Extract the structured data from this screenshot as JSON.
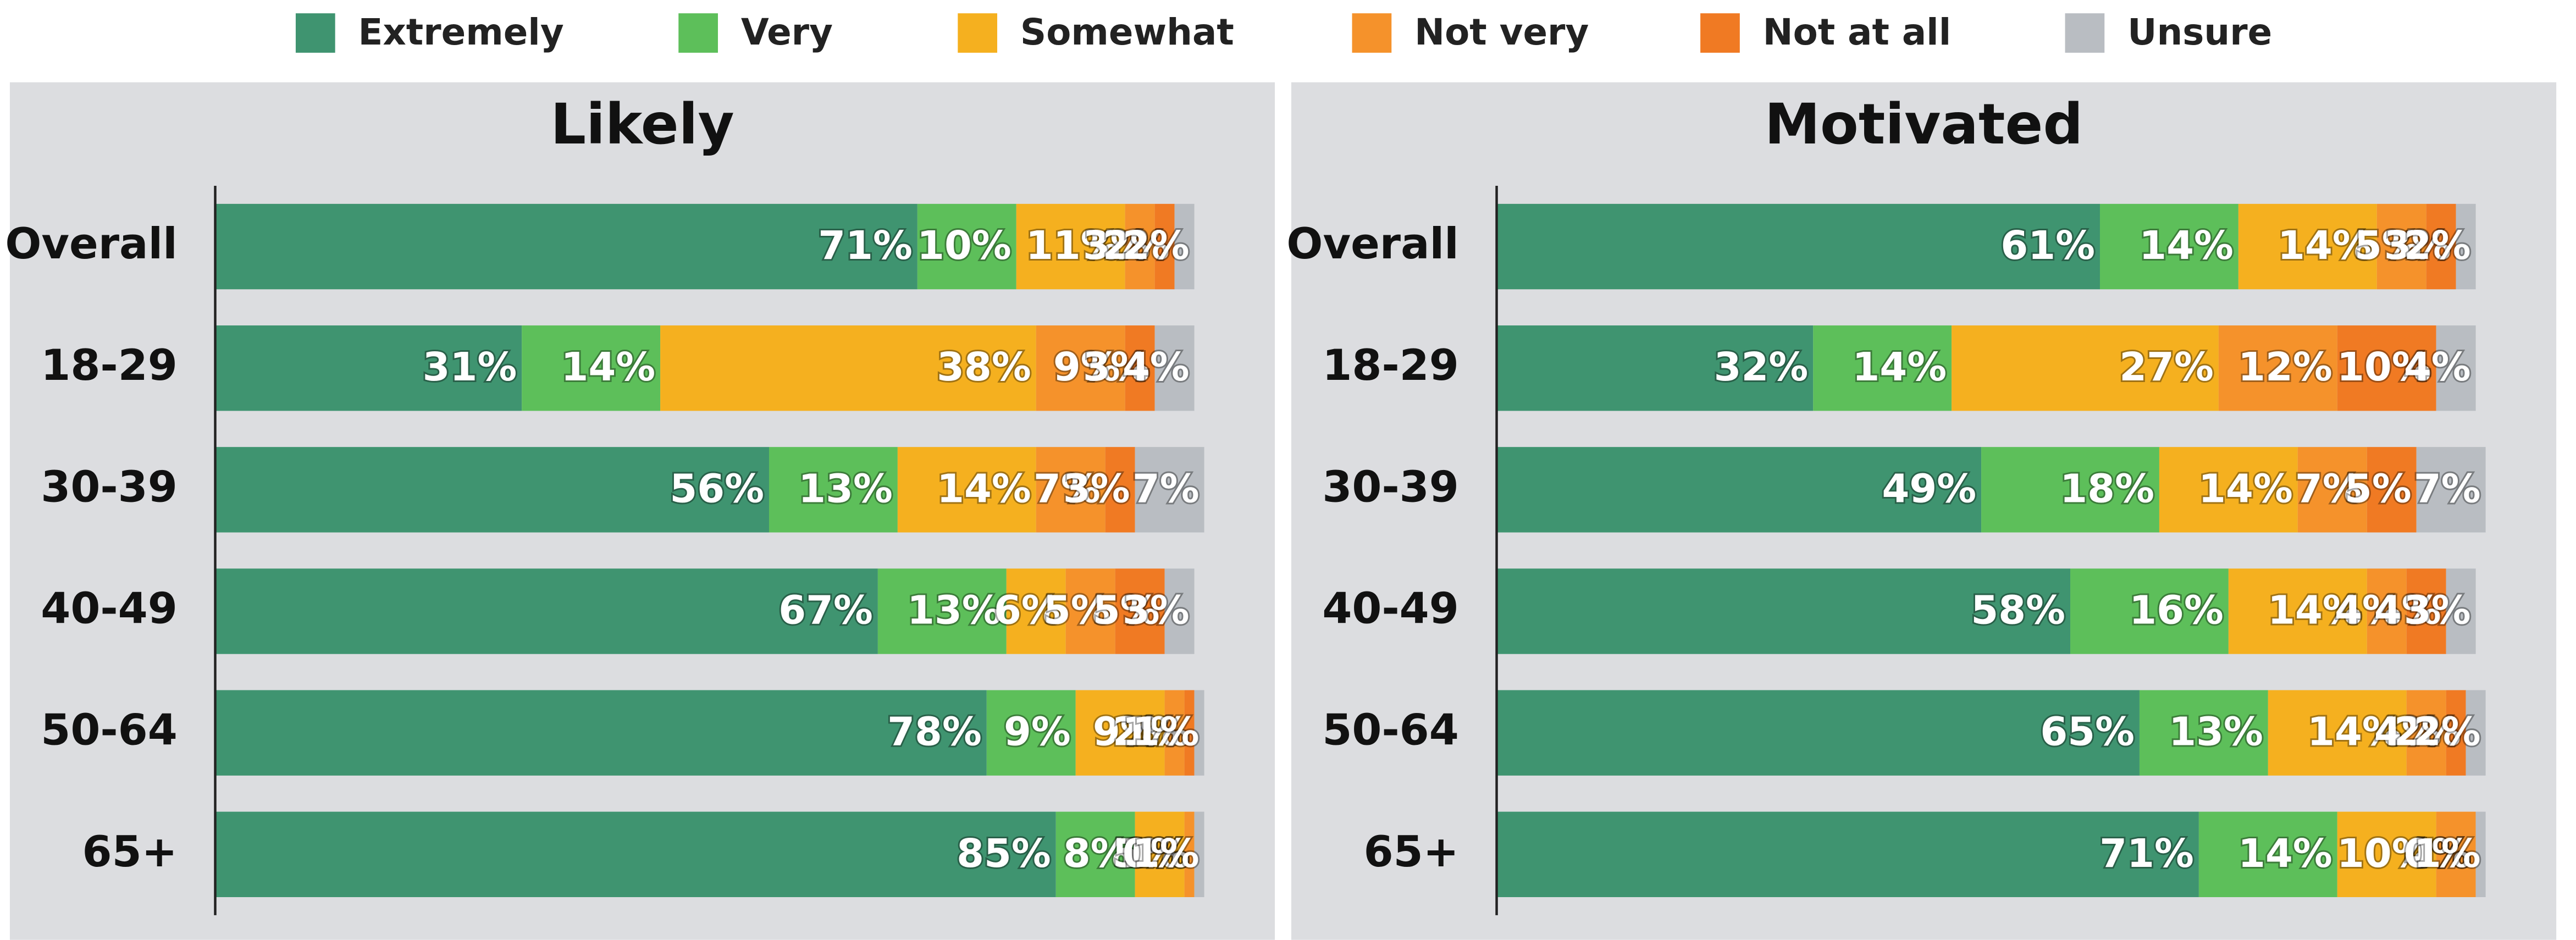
{
  "chart_data": [
    {
      "type": "bar",
      "orientation": "horizontal",
      "stacked": true,
      "title": "Likely",
      "categories": [
        "Overall",
        "18-29",
        "30-39",
        "40-49",
        "50-64",
        "65+"
      ],
      "xlim": [
        0,
        100
      ],
      "series": [
        {
          "name": "Extremely",
          "color": "#3f9470",
          "values": [
            71,
            31,
            56,
            67,
            78,
            85
          ],
          "value_labels": [
            "71%",
            "31%",
            "56%",
            "67%",
            "78%",
            "85%"
          ]
        },
        {
          "name": "Very",
          "color": "#5dbf5a",
          "values": [
            10,
            14,
            13,
            13,
            9,
            8
          ],
          "value_labels": [
            "10%",
            "14%",
            "13%",
            "13%",
            "9%",
            "8%"
          ]
        },
        {
          "name": "Somewhat",
          "color": "#f5b01f",
          "values": [
            11,
            38,
            14,
            6,
            9,
            5
          ],
          "value_labels": [
            "11%",
            "38%",
            "14%",
            "6%",
            "9%",
            "5%"
          ]
        },
        {
          "name": "Not very",
          "color": "#f5922b",
          "values": [
            3,
            9,
            7,
            5,
            2,
            1
          ],
          "value_labels": [
            "3%",
            "9%",
            "7%",
            "5%",
            "2%",
            "1%"
          ]
        },
        {
          "name": "Not at all",
          "color": "#f07a23",
          "values": [
            2,
            3,
            3,
            5,
            1,
            0
          ],
          "value_labels": [
            "2%",
            "3%",
            "3%",
            "5%",
            "1%",
            "0%"
          ]
        },
        {
          "name": "Unsure",
          "color": "#b9bdc2",
          "values": [
            2,
            4,
            7,
            3,
            1,
            1
          ],
          "value_labels": [
            "2%",
            "4%",
            "7%",
            "3%",
            "1%",
            "1%"
          ]
        }
      ]
    },
    {
      "type": "bar",
      "orientation": "horizontal",
      "stacked": true,
      "title": "Motivated",
      "categories": [
        "Overall",
        "18-29",
        "30-39",
        "40-49",
        "50-64",
        "65+"
      ],
      "xlim": [
        0,
        100
      ],
      "series": [
        {
          "name": "Extremely",
          "color": "#3f9470",
          "values": [
            61,
            32,
            49,
            58,
            65,
            71
          ],
          "value_labels": [
            "61%",
            "32%",
            "49%",
            "58%",
            "65%",
            "71%"
          ]
        },
        {
          "name": "Very",
          "color": "#5dbf5a",
          "values": [
            14,
            14,
            18,
            16,
            13,
            14
          ],
          "value_labels": [
            "14%",
            "14%",
            "18%",
            "16%",
            "13%",
            "14%"
          ]
        },
        {
          "name": "Somewhat",
          "color": "#f5b01f",
          "values": [
            14,
            27,
            14,
            14,
            14,
            10
          ],
          "value_labels": [
            "14%",
            "27%",
            "14%",
            "14%",
            "14%",
            "10%"
          ]
        },
        {
          "name": "Not very",
          "color": "#f5922b",
          "values": [
            5,
            12,
            7,
            4,
            4,
            4
          ],
          "value_labels": [
            "5%",
            "12%",
            "7%",
            "4%",
            "4%",
            "4%"
          ]
        },
        {
          "name": "Not at all",
          "color": "#f07a23",
          "values": [
            3,
            10,
            5,
            4,
            2,
            0
          ],
          "value_labels": [
            "3%",
            "10%",
            "5%",
            "4%",
            "2%",
            "0%"
          ]
        },
        {
          "name": "Unsure",
          "color": "#b9bdc2",
          "values": [
            2,
            4,
            7,
            3,
            2,
            1
          ],
          "value_labels": [
            "2%",
            "4%",
            "7%",
            "3%",
            "2%",
            "1%"
          ]
        }
      ]
    }
  ]
}
